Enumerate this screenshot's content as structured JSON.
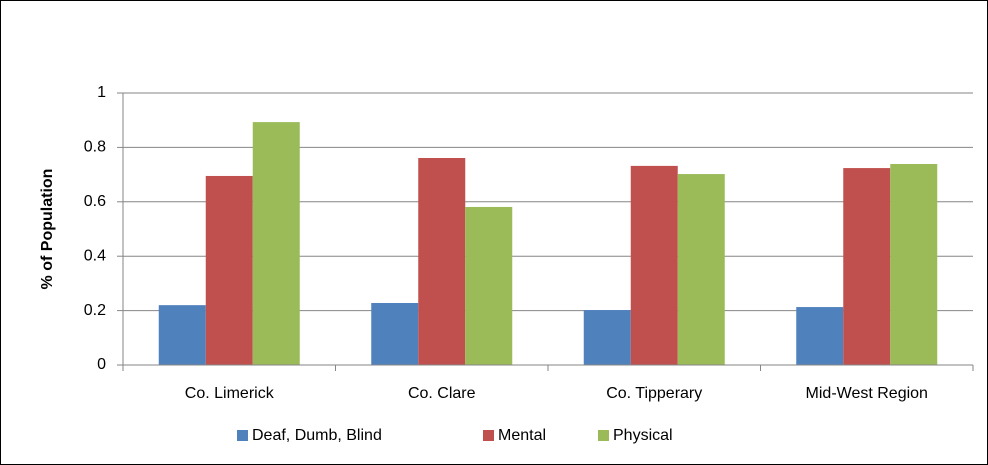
{
  "chart_data": {
    "type": "bar",
    "ylabel": "% of Population",
    "categories": [
      "Co. Limerick",
      "Co. Clare",
      "Co. Tipperary",
      "Mid-West Region"
    ],
    "series": [
      {
        "name": "Deaf, Dumb, Blind",
        "color": "#4f81bd",
        "values": [
          0.22,
          0.228,
          0.202,
          0.213
        ]
      },
      {
        "name": "Mental",
        "color": "#c0504d",
        "values": [
          0.695,
          0.761,
          0.732,
          0.724
        ]
      },
      {
        "name": "Physical",
        "color": "#9bbb59",
        "values": [
          0.893,
          0.581,
          0.702,
          0.739
        ]
      }
    ],
    "ylim": [
      0,
      1
    ],
    "yticks": [
      0,
      0.2,
      0.4,
      0.6,
      0.8,
      1
    ],
    "grid": true,
    "legend": "bottom"
  }
}
